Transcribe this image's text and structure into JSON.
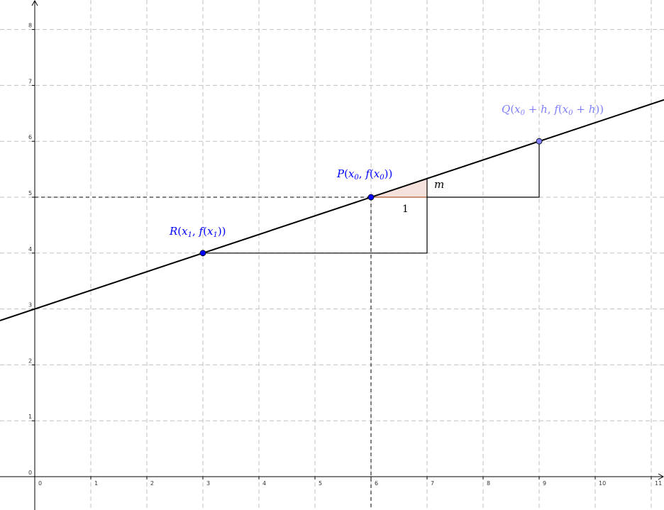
{
  "axes": {
    "x_ticks": [
      "0",
      "1",
      "2",
      "3",
      "4",
      "5",
      "6",
      "7",
      "8",
      "9",
      "10",
      "11"
    ],
    "y_ticks": [
      "0",
      "1",
      "2",
      "3",
      "4",
      "5",
      "6",
      "7",
      "8"
    ],
    "xlim": [
      -0.6,
      11.2
    ],
    "ylim": [
      -0.6,
      8.5
    ]
  },
  "line": {
    "slope": 0.3333,
    "intercept": 3.0,
    "color": "#000000"
  },
  "points": {
    "P": {
      "x": 6,
      "y": 5,
      "color": "#0000ff"
    },
    "Q": {
      "x": 9,
      "y": 6,
      "color": "#7f7fff"
    },
    "R": {
      "x": 3,
      "y": 4,
      "color": "#0000ff"
    }
  },
  "labels": {
    "P": {
      "name": "P",
      "open": "(",
      "x": "x",
      "x_sub": "0",
      "comma": ", ",
      "f": "f",
      "fopen": "(",
      "fx": "x",
      "fx_sub": "0",
      "close": "))"
    },
    "Q": {
      "name": "Q",
      "open": "(",
      "x": "x",
      "x_sub": "0",
      "plus": " + ",
      "h": "h",
      "comma": ", ",
      "f": "f",
      "fopen": "(",
      "fx": "x",
      "fx_sub": "0",
      "plus2": " + ",
      "h2": "h",
      "close": "))"
    },
    "R": {
      "name": "R",
      "open": "(",
      "x": "x",
      "x_sub": "1",
      "comma": ", ",
      "f": "f",
      "fopen": "(",
      "fx": "x",
      "fx_sub": "1",
      "close": "))"
    },
    "run": "1",
    "rise": "m"
  },
  "colors": {
    "grid": "#c0c0c0",
    "slope_fill": "#f5e1dc",
    "slope_stroke": "#993300"
  }
}
